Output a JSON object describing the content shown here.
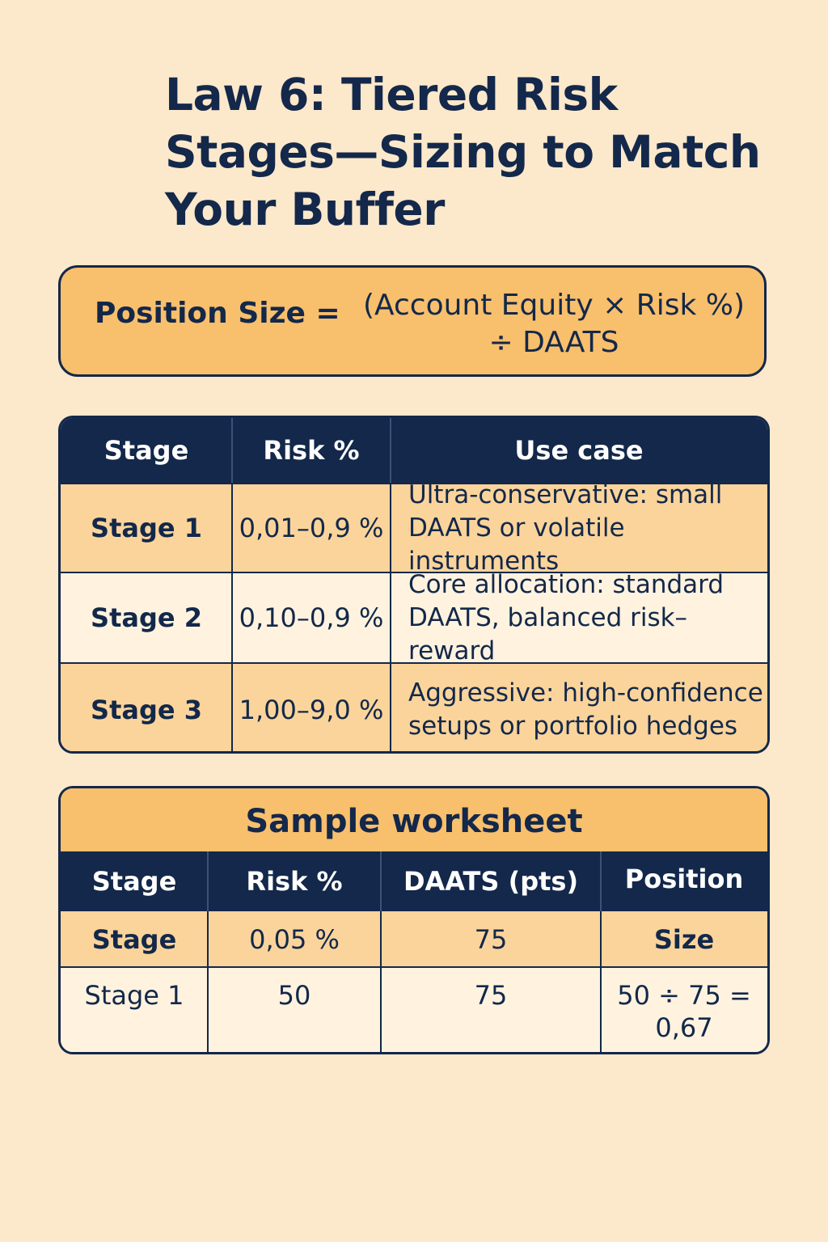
{
  "title": "Law 6: Tiered Risk Stages—Sizing to Match Your Buffer",
  "formula": {
    "lhs": "Position Size =",
    "rhs_line1": "(Account Equity × Risk %)",
    "rhs_line2": "÷ DAATS"
  },
  "stages_table": {
    "headers": [
      "Stage",
      "Risk %",
      "Use case"
    ],
    "rows": [
      {
        "stage": "Stage 1",
        "risk": "0,01–0,9 %",
        "use_line1": "Ultra-conservative: small",
        "use_line2": "DAATS or volatile instruments"
      },
      {
        "stage": "Stage 2",
        "risk": "0,10–0,9 %",
        "use_line1": "Core allocation: standard",
        "use_line2": "DAATS, balanced risk–reward"
      },
      {
        "stage": "Stage 3",
        "risk": "1,00–9,0 %",
        "use_line1": "Aggressive: high-confidence",
        "use_line2": "setups or portfolio hedges"
      }
    ]
  },
  "worksheet": {
    "title": "Sample worksheet",
    "headers": [
      "Stage",
      "Risk %",
      "DAATS (pts)",
      "Position"
    ],
    "rows": [
      {
        "stage": "Stage",
        "risk": "0,05 %",
        "daats": "75",
        "position_line1": "Size",
        "position_line2": ""
      },
      {
        "stage": "Stage 1",
        "risk": "50",
        "daats": "75",
        "position_line1": "50 ÷ 75 =",
        "position_line2": "0,67"
      }
    ]
  },
  "colors": {
    "background": "#fce8cb",
    "navy": "#13284a",
    "orange": "#f8bf6c",
    "peach": "#fbd49b",
    "cream": "#fff3df"
  }
}
